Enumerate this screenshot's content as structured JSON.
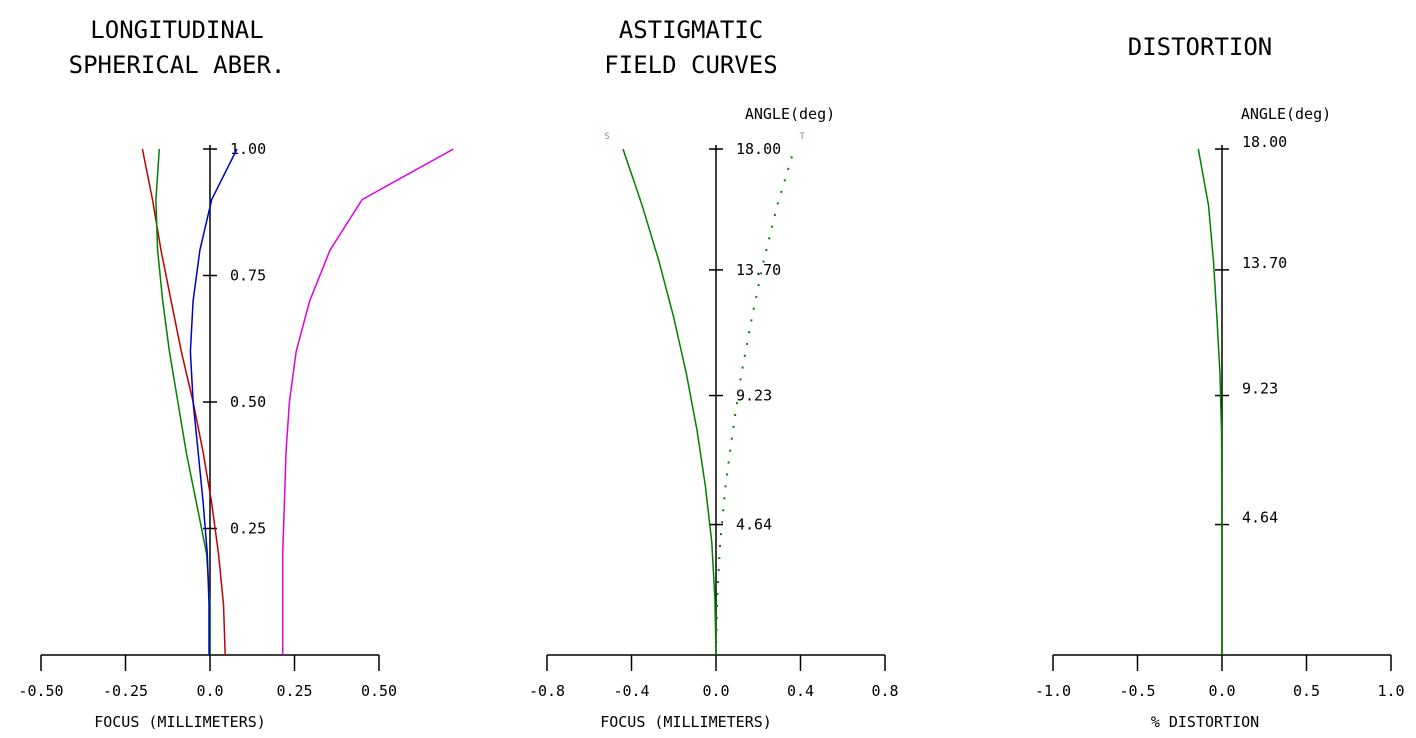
{
  "chart_data": [
    {
      "type": "line",
      "title": [
        "LONGITUDINAL",
        "SPHERICAL ABER."
      ],
      "xlabel": "FOCUS (MILLIMETERS)",
      "xlim": [
        -0.5,
        0.5
      ],
      "x_ticks": [
        "-0.50",
        "-0.25",
        "0.0",
        "0.25",
        "0.50"
      ],
      "x_tick_values": [
        -0.5,
        -0.25,
        0.0,
        0.25,
        0.5
      ],
      "ylim": [
        0,
        1
      ],
      "y_ticks": [
        "0.25",
        "0.50",
        "0.75",
        "1.00"
      ],
      "y_tick_values": [
        0.25,
        0.5,
        0.75,
        1.0
      ],
      "series": [
        {
          "color": "#c00000",
          "points": [
            [
              0.045,
              0
            ],
            [
              0.04,
              0.1
            ],
            [
              0.025,
              0.2
            ],
            [
              0.005,
              0.3
            ],
            [
              -0.02,
              0.4
            ],
            [
              -0.05,
              0.5
            ],
            [
              -0.085,
              0.6
            ],
            [
              -0.115,
              0.7
            ],
            [
              -0.145,
              0.8
            ],
            [
              -0.17,
              0.9
            ],
            [
              -0.2,
              1.0
            ]
          ]
        },
        {
          "color": "#008000",
          "points": [
            [
              0,
              0
            ],
            [
              0,
              0.1
            ],
            [
              -0.01,
              0.2
            ],
            [
              -0.04,
              0.3
            ],
            [
              -0.07,
              0.4
            ],
            [
              -0.095,
              0.5
            ],
            [
              -0.12,
              0.6
            ],
            [
              -0.14,
              0.7
            ],
            [
              -0.155,
              0.8
            ],
            [
              -0.16,
              0.9
            ],
            [
              -0.15,
              1.0
            ]
          ]
        },
        {
          "color": "#0000cc",
          "points": [
            [
              -0.003,
              0
            ],
            [
              -0.003,
              0.1
            ],
            [
              -0.008,
              0.2
            ],
            [
              -0.02,
              0.3
            ],
            [
              -0.035,
              0.4
            ],
            [
              -0.05,
              0.5
            ],
            [
              -0.058,
              0.6
            ],
            [
              -0.05,
              0.7
            ],
            [
              -0.03,
              0.8
            ],
            [
              0.005,
              0.9
            ],
            [
              0.08,
              1.0
            ]
          ]
        },
        {
          "color": "#e000e0",
          "points": [
            [
              0.215,
              0
            ],
            [
              0.215,
              0.1
            ],
            [
              0.215,
              0.2
            ],
            [
              0.22,
              0.3
            ],
            [
              0.225,
              0.4
            ],
            [
              0.235,
              0.5
            ],
            [
              0.255,
              0.6
            ],
            [
              0.295,
              0.7
            ],
            [
              0.355,
              0.8
            ],
            [
              0.45,
              0.9
            ],
            [
              0.72,
              1.0
            ]
          ]
        }
      ]
    },
    {
      "type": "line",
      "title": [
        "ASTIGMATIC",
        "FIELD CURVES"
      ],
      "xlabel": "FOCUS (MILLIMETERS)",
      "ylabel": "ANGLE(deg)",
      "xlim": [
        -0.8,
        0.8
      ],
      "x_ticks": [
        "-0.8",
        "-0.4",
        "0.0",
        "0.4",
        "0.8"
      ],
      "x_tick_values": [
        -0.8,
        -0.4,
        0.0,
        0.4,
        0.8
      ],
      "ylim": [
        0,
        18.0
      ],
      "y_ticks": [
        "4.64",
        "9.23",
        "13.70",
        "18.00"
      ],
      "y_tick_values": [
        4.64,
        9.23,
        13.7,
        18.0
      ],
      "legend": [
        "S",
        "T"
      ],
      "series": [
        {
          "name": "S",
          "color": "#008000",
          "style": "solid",
          "points": [
            [
              0,
              0
            ],
            [
              -0.005,
              2
            ],
            [
              -0.02,
              4
            ],
            [
              -0.05,
              6
            ],
            [
              -0.09,
              8
            ],
            [
              -0.14,
              10
            ],
            [
              -0.2,
              12
            ],
            [
              -0.27,
              14
            ],
            [
              -0.35,
              16
            ],
            [
              -0.44,
              18
            ]
          ]
        },
        {
          "name": "T",
          "color": "#008000",
          "style": "dotted",
          "points": [
            [
              0,
              0
            ],
            [
              0.005,
              2
            ],
            [
              0.02,
              4
            ],
            [
              0.045,
              6
            ],
            [
              0.08,
              8
            ],
            [
              0.12,
              10
            ],
            [
              0.17,
              12
            ],
            [
              0.225,
              14
            ],
            [
              0.29,
              16
            ],
            [
              0.37,
              18
            ]
          ]
        }
      ]
    },
    {
      "type": "line",
      "title": [
        "DISTORTION"
      ],
      "xlabel": "% DISTORTION",
      "ylabel": "ANGLE(deg)",
      "xlim": [
        -1.0,
        1.0
      ],
      "x_ticks": [
        "-1.0",
        "-0.5",
        "0.0",
        "0.5",
        "1.0"
      ],
      "x_tick_values": [
        -1.0,
        -0.5,
        0.0,
        0.5,
        1.0
      ],
      "ylim": [
        0,
        18.0
      ],
      "y_ticks": [
        "4.64",
        "9.23",
        "13.70",
        "18.00"
      ],
      "y_tick_values": [
        4.64,
        9.23,
        13.7,
        18.0
      ],
      "series": [
        {
          "color": "#008000",
          "points": [
            [
              0,
              0
            ],
            [
              0,
              4
            ],
            [
              -0.003,
              8
            ],
            [
              -0.012,
              10
            ],
            [
              -0.03,
              12
            ],
            [
              -0.05,
              14
            ],
            [
              -0.08,
              16
            ],
            [
              -0.14,
              18
            ]
          ]
        }
      ]
    }
  ]
}
